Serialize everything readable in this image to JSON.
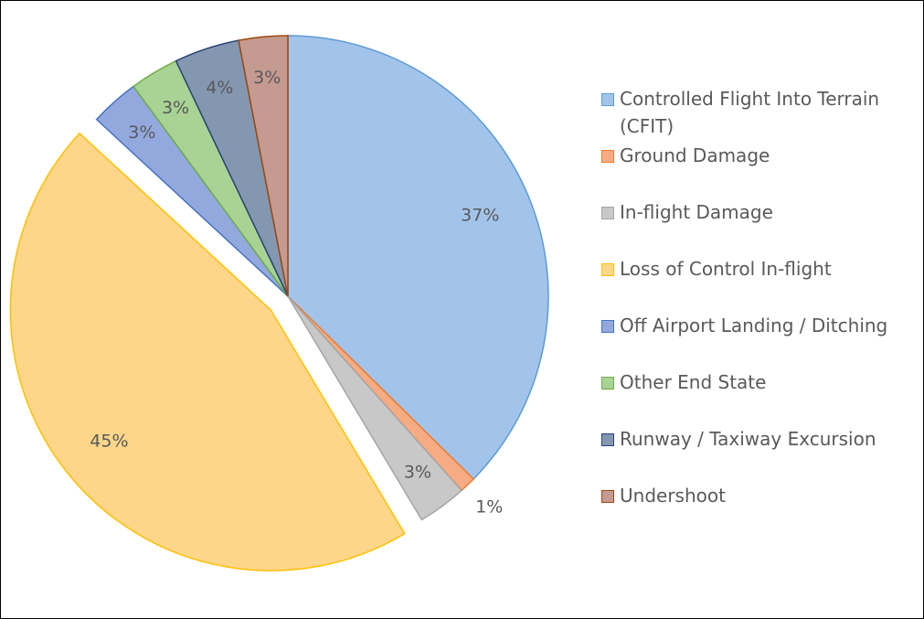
{
  "chart_data": {
    "type": "pie",
    "categories": [
      "Controlled Flight Into Terrain (CFIT)",
      "Ground Damage",
      "In-flight Damage",
      "Loss of Control In-flight",
      "Off Airport Landing / Ditching",
      "Other End State",
      "Runway / Taxiway Excursion",
      "Undershoot"
    ],
    "values": [
      37,
      1,
      3,
      45,
      3,
      3,
      4,
      3
    ],
    "value_labels": [
      "37%",
      "1%",
      "3%",
      "45%",
      "3%",
      "3%",
      "4%",
      "3%"
    ],
    "colors": [
      "#a3c4ea",
      "#f6ab83",
      "#c8c8c8",
      "#fdd68a",
      "#93a9de",
      "#a8d394",
      "#8497b0",
      "#c59a90"
    ],
    "legend": "right"
  }
}
